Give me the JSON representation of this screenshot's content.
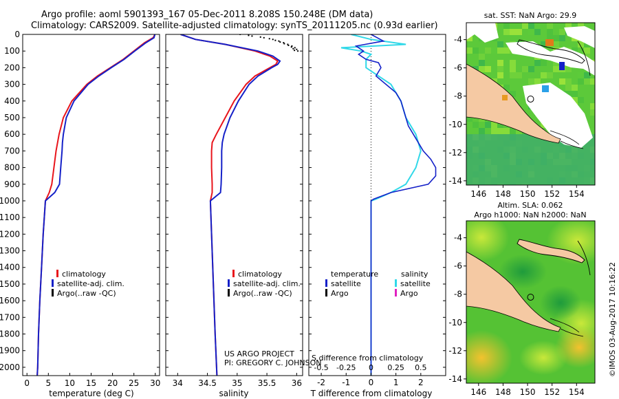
{
  "header": {
    "title_line1": "Argo profile: aoml 5901393_167 05-Dec-2011 8.208S 150.248E (DM data)",
    "title_line2": "Climatology: CARS2009. Satellite-adjusted climatology: synTS_20111205.nc (0.93d earlier)"
  },
  "colors": {
    "climatology": "#e8141b",
    "satellite": "#1420c8",
    "argo": "#000000",
    "sal_satellite": "#30d8e8",
    "sal_argo": "#e020c0",
    "land": "#f5c9a3"
  },
  "chart_data": [
    {
      "type": "line",
      "id": "temperature",
      "xlabel": "temperature (deg C)",
      "xlim": [
        -1,
        31
      ],
      "ylim": [
        2050,
        0
      ],
      "xticks": [
        "0",
        "5",
        "10",
        "15",
        "20",
        "25",
        "30"
      ],
      "yticks": [
        "0",
        "100",
        "200",
        "300",
        "400",
        "500",
        "600",
        "700",
        "800",
        "900",
        "1000",
        "1100",
        "1200",
        "1300",
        "1400",
        "1500",
        "1600",
        "1700",
        "1800",
        "1900",
        "2000"
      ],
      "legend": [
        "climatology",
        "satellite-adj. clim.",
        "Argo(..raw -QC)"
      ],
      "series": [
        {
          "name": "climatology",
          "depth": [
            0,
            20,
            50,
            100,
            150,
            200,
            250,
            300,
            400,
            500,
            600,
            700,
            800,
            900,
            950,
            1000,
            1200,
            1400,
            1600,
            1800,
            2000,
            2050
          ],
          "values": [
            29.9,
            29.5,
            27.5,
            25,
            22.5,
            19.5,
            16.5,
            14,
            10.5,
            8.5,
            7.5,
            6.8,
            6.3,
            5.8,
            5.2,
            4.3,
            3.8,
            3.4,
            3.0,
            2.7,
            2.5,
            2.4
          ]
        },
        {
          "name": "satellite-adj. clim.",
          "depth": [
            0,
            20,
            50,
            100,
            150,
            200,
            250,
            300,
            400,
            500,
            600,
            650,
            700,
            800,
            900,
            950,
            1000,
            1200,
            1400,
            1600,
            1800,
            2000,
            2050
          ],
          "values": [
            29.9,
            29.7,
            27.8,
            25.2,
            22.7,
            19.7,
            16.8,
            14.3,
            11,
            9.2,
            8.5,
            8.3,
            8.2,
            7.9,
            7.6,
            6.5,
            4.3,
            3.8,
            3.4,
            3.0,
            2.7,
            2.5,
            2.4
          ]
        }
      ]
    },
    {
      "type": "line",
      "id": "salinity",
      "xlabel": "salinity",
      "xlim": [
        33.8,
        36.1
      ],
      "ylim": [
        2050,
        0
      ],
      "xticks": [
        "34",
        "34.5",
        "35",
        "35.5",
        "36"
      ],
      "legend": [
        "climatology",
        "satellite-adj. clim.",
        "Argo(..raw -QC)"
      ],
      "series": [
        {
          "name": "climatology",
          "depth": [
            0,
            30,
            60,
            100,
            130,
            160,
            180,
            200,
            250,
            300,
            400,
            500,
            600,
            650,
            700,
            800,
            900,
            950,
            1000,
            1200,
            1500,
            1800,
            2050
          ],
          "values": [
            34.05,
            34.3,
            34.8,
            35.3,
            35.55,
            35.68,
            35.65,
            35.55,
            35.3,
            35.15,
            34.95,
            34.8,
            34.65,
            34.58,
            34.57,
            34.57,
            34.58,
            34.58,
            34.55,
            34.57,
            34.6,
            34.63,
            34.66
          ]
        },
        {
          "name": "satellite-adj. clim.",
          "depth": [
            0,
            30,
            60,
            100,
            130,
            160,
            180,
            200,
            250,
            300,
            400,
            500,
            600,
            650,
            700,
            800,
            900,
            950,
            1000,
            1200,
            1500,
            1800,
            2050
          ],
          "values": [
            34.05,
            34.3,
            34.8,
            35.35,
            35.6,
            35.72,
            35.68,
            35.58,
            35.35,
            35.2,
            35.02,
            34.88,
            34.78,
            34.75,
            34.74,
            34.74,
            34.73,
            34.72,
            34.55,
            34.57,
            34.6,
            34.63,
            34.66
          ]
        },
        {
          "name": "Argo",
          "depth": [
            0,
            10,
            20,
            30,
            40,
            50,
            60,
            70,
            80,
            90,
            100
          ],
          "values": [
            35.05,
            35.25,
            35.45,
            35.6,
            35.7,
            35.78,
            35.85,
            35.92,
            35.97,
            36.0,
            36.02
          ]
        }
      ]
    },
    {
      "type": "line",
      "id": "difference",
      "xlabel_top": "S difference from climatology",
      "xlabel_bottom": "T difference from climatology",
      "xlim": [
        -2.5,
        3.0
      ],
      "ylim": [
        2050,
        0
      ],
      "xticks_T": [
        "-2",
        "-1",
        "0",
        "1",
        "2"
      ],
      "xticks_S": [
        "-0.5",
        "-0.25",
        "0",
        "0.25",
        "0.5"
      ],
      "legend_temperature_title": "temperature",
      "legend_salinity_title": "salinity",
      "legend_temperature": [
        "satellite",
        "Argo"
      ],
      "legend_salinity": [
        "satellite",
        "Argo"
      ],
      "series": [
        {
          "name": "T satellite",
          "depth": [
            0,
            40,
            70,
            100,
            120,
            150,
            170,
            200,
            250,
            300,
            350,
            400,
            450,
            500,
            550,
            600,
            650,
            700,
            750,
            800,
            850,
            900,
            950,
            990,
            1000,
            2050
          ],
          "values": [
            0,
            0.5,
            -0.6,
            -0.3,
            -0.5,
            -0.2,
            0.3,
            0.4,
            0.2,
            0.6,
            1.0,
            1.2,
            1.3,
            1.4,
            1.5,
            1.7,
            1.9,
            2.1,
            2.4,
            2.6,
            2.6,
            2.3,
            0.8,
            0.1,
            0.0,
            0.0
          ]
        },
        {
          "name": "S satellite",
          "depth": [
            0,
            30,
            60,
            80,
            100,
            120,
            150,
            200,
            300,
            400,
            500,
            600,
            700,
            800,
            900,
            950,
            990,
            1000,
            2050
          ],
          "values": [
            -0.2,
            0.0,
            0.35,
            -0.3,
            -0.1,
            0.0,
            -0.05,
            -0.05,
            0.2,
            0.3,
            0.35,
            0.45,
            0.5,
            0.45,
            0.35,
            0.2,
            0.05,
            0.0,
            0.0
          ]
        }
      ]
    },
    {
      "type": "heatmap",
      "id": "sst-map",
      "title": "sat. SST: NaN Argo: 29.9",
      "xticks": [
        "146",
        "148",
        "150",
        "152",
        "154"
      ],
      "yticks": [
        "-4",
        "-6",
        "-8",
        "-10",
        "-12",
        "-14"
      ],
      "xlim": [
        145,
        155.5
      ],
      "ylim": [
        -14.3,
        -2.8
      ]
    },
    {
      "type": "heatmap",
      "id": "sla-map",
      "title_line1": "Altim. SLA: 0.062",
      "title_line2": "Argo h1000: NaN h2000: NaN",
      "xticks": [
        "146",
        "148",
        "150",
        "152",
        "154"
      ],
      "yticks": [
        "-4",
        "-6",
        "-8",
        "-10",
        "-12",
        "-14"
      ],
      "xlim": [
        145,
        155.5
      ],
      "ylim": [
        -14.3,
        -2.8
      ]
    }
  ],
  "credit": {
    "line1": "US ARGO PROJECT",
    "line2": "PI: GREGORY C. JOHNSON",
    "stamp": "©IMOS 03-Aug-2017 10:16:22"
  }
}
